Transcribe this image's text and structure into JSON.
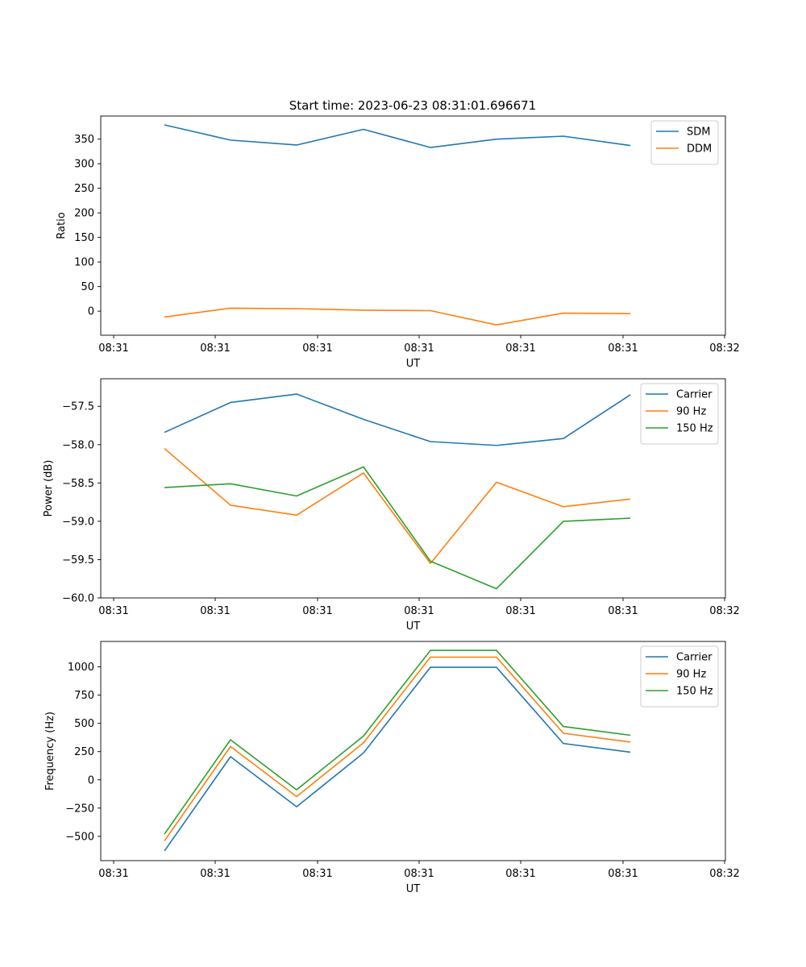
{
  "figure": {
    "title": "Start time: 2023-06-23 08:31:01.696671"
  },
  "chart_data": [
    {
      "type": "line",
      "xlabel": "UT",
      "ylabel": "Ratio",
      "x_tick_labels": [
        "08:31",
        "08:31",
        "08:31",
        "08:31",
        "08:31",
        "08:31",
        "08:32"
      ],
      "y_ticks": [
        0,
        50,
        100,
        150,
        200,
        250,
        300,
        350
      ],
      "ylim": [
        -49,
        397
      ],
      "legend_position": "upper right",
      "series": [
        {
          "name": "SDM",
          "color": "#1f77b4",
          "values": [
            379,
            348,
            338,
            370,
            333,
            350,
            356,
            337
          ]
        },
        {
          "name": "DDM",
          "color": "#ff7f0e",
          "values": [
            -12,
            6,
            5,
            2,
            1,
            -28,
            -4,
            -5
          ]
        }
      ]
    },
    {
      "type": "line",
      "xlabel": "UT",
      "ylabel": "Power (dB)",
      "x_tick_labels": [
        "08:31",
        "08:31",
        "08:31",
        "08:31",
        "08:31",
        "08:31",
        "08:32"
      ],
      "y_ticks": [
        -60.0,
        -59.5,
        -59.0,
        -58.5,
        -58.0,
        -57.5
      ],
      "y_tick_labels": [
        "−60.0",
        "−59.5",
        "−59.0",
        "−58.5",
        "−58.0",
        "−57.5"
      ],
      "ylim": [
        -60.0,
        -57.14
      ],
      "legend_position": "upper right",
      "series": [
        {
          "name": "Carrier",
          "color": "#1f77b4",
          "values": [
            -57.84,
            -57.45,
            -57.34,
            -57.67,
            -57.96,
            -58.01,
            -57.92,
            -57.35
          ]
        },
        {
          "name": "90 Hz",
          "color": "#ff7f0e",
          "values": [
            -58.05,
            -58.79,
            -58.92,
            -58.37,
            -59.55,
            -58.49,
            -58.81,
            -58.71
          ]
        },
        {
          "name": "150 Hz",
          "color": "#2ca02c",
          "values": [
            -58.56,
            -58.51,
            -58.67,
            -58.29,
            -59.52,
            -59.88,
            -59.0,
            -58.96
          ]
        }
      ]
    },
    {
      "type": "line",
      "xlabel": "UT",
      "ylabel": "Frequency (Hz)",
      "x_tick_labels": [
        "08:31",
        "08:31",
        "08:31",
        "08:31",
        "08:31",
        "08:31",
        "08:32"
      ],
      "y_ticks": [
        -500,
        -250,
        0,
        250,
        500,
        750,
        1000
      ],
      "y_tick_labels": [
        "−500",
        "−250",
        "0",
        "250",
        "500",
        "750",
        "1000"
      ],
      "ylim": [
        -715,
        1225
      ],
      "legend_position": "upper right",
      "series": [
        {
          "name": "Carrier",
          "color": "#1f77b4",
          "values": [
            -630,
            205,
            -238,
            238,
            996,
            996,
            322,
            245
          ]
        },
        {
          "name": "90 Hz",
          "color": "#ff7f0e",
          "values": [
            -540,
            295,
            -148,
            328,
            1086,
            1086,
            412,
            335
          ]
        },
        {
          "name": "150 Hz",
          "color": "#2ca02c",
          "values": [
            -480,
            355,
            -88,
            388,
            1146,
            1146,
            472,
            395
          ]
        }
      ]
    }
  ]
}
